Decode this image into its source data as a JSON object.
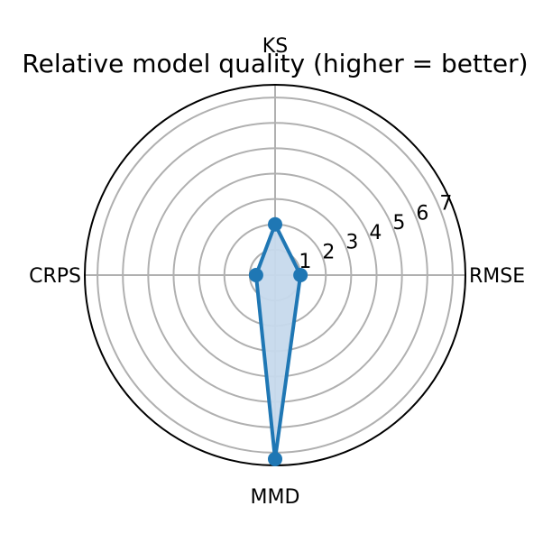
{
  "chart_data": {
    "type": "radar",
    "title": "Relative model quality (higher = better)",
    "categories": [
      "KS",
      "RMSE",
      "MMD",
      "CRPS"
    ],
    "radial_ticks": [
      "1",
      "2",
      "3",
      "4",
      "5",
      "6",
      "7"
    ],
    "rlim": [
      0,
      7.5
    ],
    "grid": true,
    "series": [
      {
        "values": [
          2.0,
          1.0,
          7.25,
          0.75
        ],
        "color": "#1f77b4",
        "fill": "#c6d9ec"
      }
    ]
  }
}
